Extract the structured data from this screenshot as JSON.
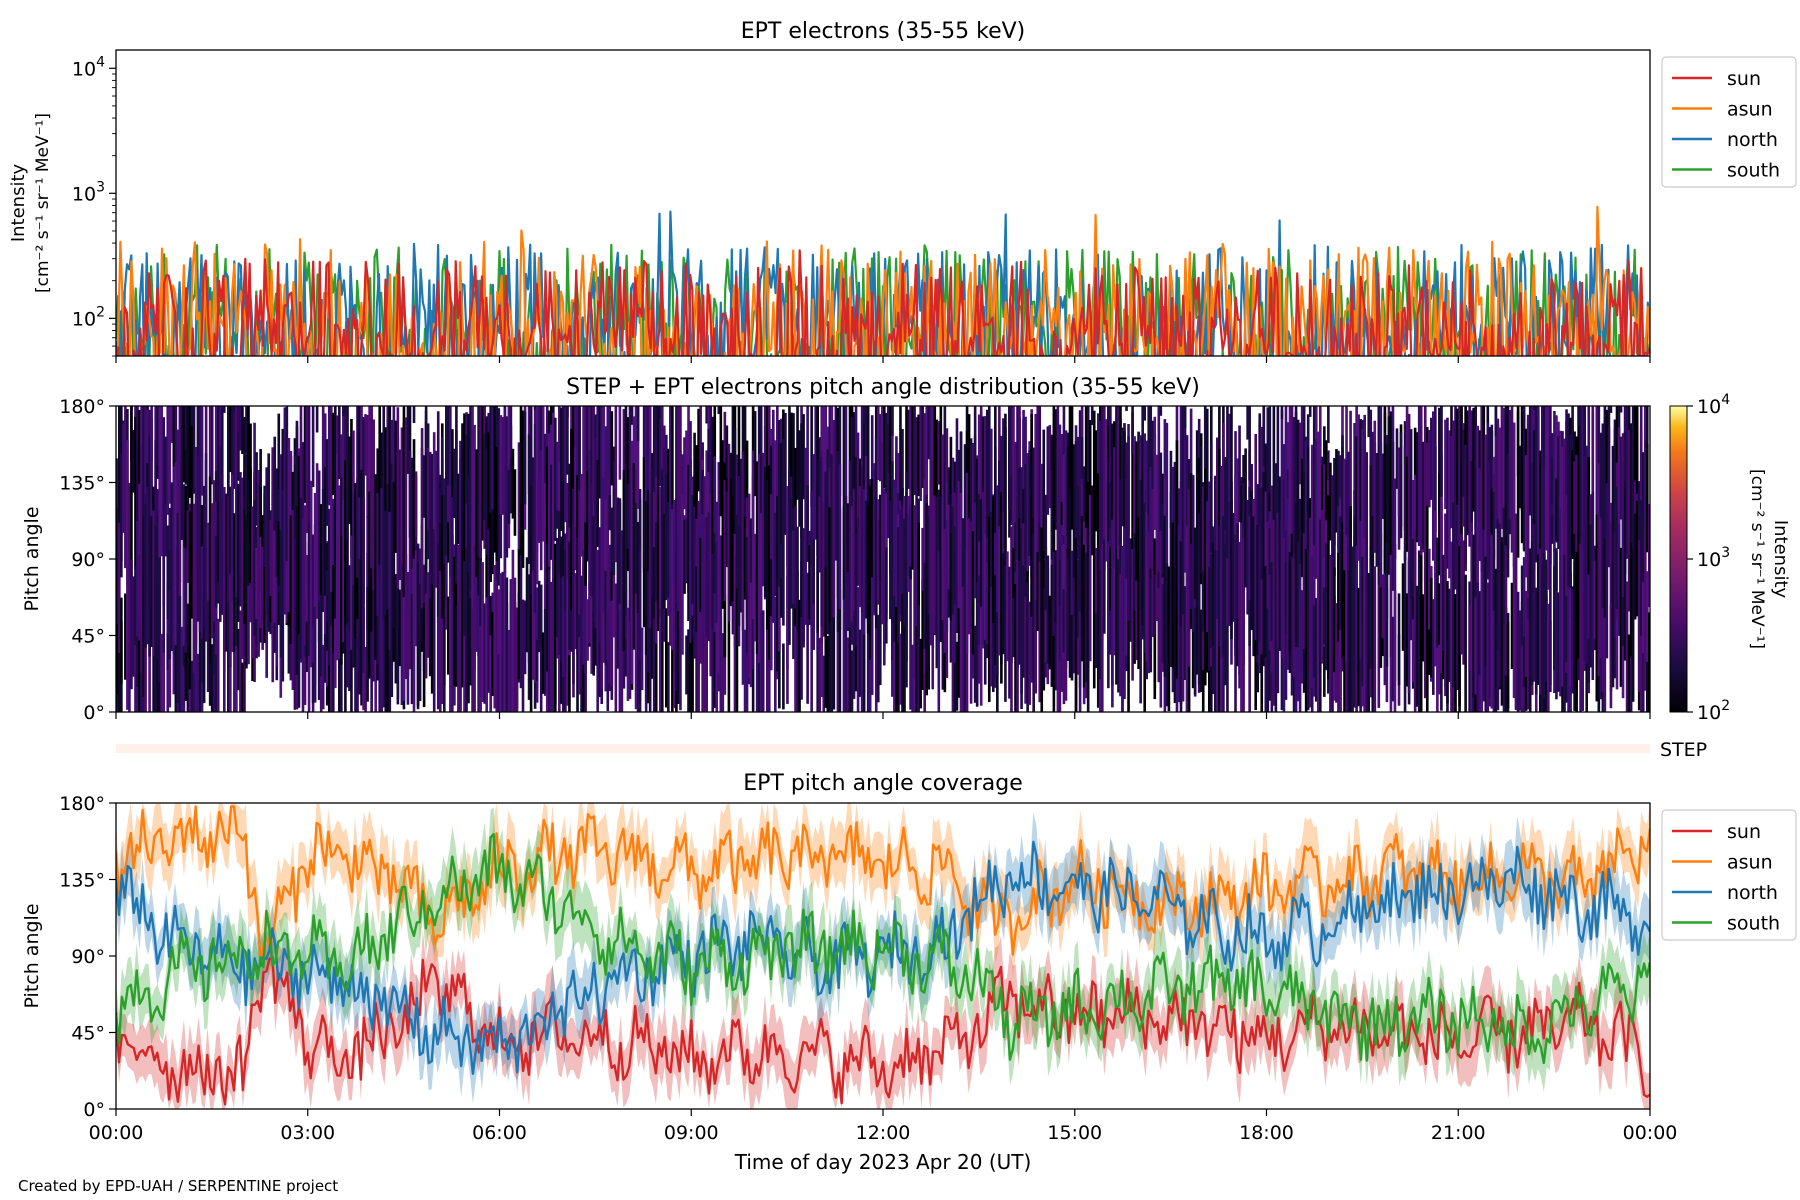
{
  "footer": "Created by EPD-UAH / SERPENTINE project",
  "xaxis_label": "Time of day 2023 Apr 20 (UT)",
  "x_ticks": [
    "00:00",
    "03:00",
    "06:00",
    "09:00",
    "12:00",
    "15:00",
    "18:00",
    "21:00",
    "00:00"
  ],
  "step_label": "STEP",
  "colors": {
    "sun": "#d62728",
    "asun": "#ff7f0e",
    "north": "#1f77b4",
    "south": "#2ca02c"
  },
  "chart_data": [
    {
      "type": "line",
      "title": "EPT electrons (35-55 keV)",
      "ylabel": [
        "Intensity",
        "[cm⁻² s⁻¹ sr⁻¹ MeV⁻¹]"
      ],
      "yscale": "log",
      "ylim": [
        50,
        14000
      ],
      "y_ticks": [
        {
          "v": 100,
          "base": "10",
          "exp": "2"
        },
        {
          "v": 1000,
          "base": "10",
          "exp": "3"
        },
        {
          "v": 10000,
          "base": "10",
          "exp": "4"
        }
      ],
      "xlim": [
        0,
        24
      ],
      "legend": "right",
      "legend_entries": [
        "sun",
        "asun",
        "north",
        "south"
      ],
      "series_summary": [
        {
          "name": "sun",
          "typical_range": [
            50,
            300
          ]
        },
        {
          "name": "asun",
          "typical_range": [
            50,
            700
          ]
        },
        {
          "name": "north",
          "typical_range": [
            50,
            650
          ]
        },
        {
          "name": "south",
          "typical_range": [
            50,
            650
          ]
        }
      ]
    },
    {
      "type": "heatmap",
      "title": "STEP + EPT electrons pitch angle distribution (35-55 keV)",
      "ylabel": "Pitch angle",
      "y_ticks": [
        "0°",
        "45°",
        "90°",
        "135°",
        "180°"
      ],
      "ylim": [
        0,
        180
      ],
      "xlim": [
        0,
        24
      ],
      "colorbar": {
        "label": [
          "Intensity",
          "[cm⁻² s⁻¹ sr⁻¹ MeV⁻¹]"
        ],
        "scale": "log",
        "range": [
          100,
          10000
        ],
        "ticks": [
          {
            "base": "10",
            "exp": "2"
          },
          {
            "base": "10",
            "exp": "3"
          },
          {
            "base": "10",
            "exp": "4"
          }
        ],
        "colormap": "inferno"
      }
    },
    {
      "type": "line",
      "title": "EPT pitch angle coverage",
      "ylabel": "Pitch angle",
      "y_ticks": [
        "0°",
        "45°",
        "90°",
        "135°",
        "180°"
      ],
      "ylim": [
        0,
        180
      ],
      "xlim": [
        0,
        24
      ],
      "legend": "right",
      "legend_entries": [
        "sun",
        "asun",
        "north",
        "south"
      ],
      "series": [
        {
          "name": "sun",
          "x": [
            0,
            1,
            2,
            2.3,
            3,
            3.6,
            4.5,
            5,
            6,
            7,
            8,
            9,
            10,
            11,
            12,
            13,
            13.7,
            14,
            15,
            16,
            17,
            18,
            19,
            20,
            21,
            22,
            23,
            24
          ],
          "values": [
            40,
            25,
            20,
            90,
            40,
            30,
            50,
            75,
            40,
            45,
            40,
            30,
            35,
            30,
            25,
            35,
            55,
            65,
            55,
            55,
            50,
            40,
            50,
            45,
            40,
            45,
            50,
            30
          ]
        },
        {
          "name": "asun",
          "x": [
            0,
            1,
            2,
            2.3,
            3,
            3.6,
            4.5,
            5,
            6,
            7,
            8,
            9,
            10,
            11,
            12,
            13,
            13.7,
            14,
            15,
            16,
            17,
            18,
            19,
            20,
            21,
            22,
            23,
            24
          ],
          "values": [
            145,
            160,
            165,
            90,
            150,
            150,
            130,
            110,
            140,
            150,
            150,
            140,
            145,
            150,
            145,
            140,
            110,
            115,
            135,
            125,
            120,
            130,
            135,
            140,
            135,
            140,
            130,
            160
          ]
        },
        {
          "name": "north",
          "x": [
            0,
            1,
            2,
            2.3,
            3,
            3.6,
            4.5,
            5,
            6,
            7,
            8,
            9,
            10,
            11,
            12,
            13,
            13.7,
            14,
            15,
            16,
            17,
            18,
            19,
            20,
            21,
            22,
            23,
            24
          ],
          "values": [
            130,
            95,
            85,
            85,
            80,
            75,
            55,
            45,
            35,
            60,
            80,
            90,
            100,
            85,
            90,
            100,
            130,
            140,
            130,
            125,
            110,
            100,
            110,
            125,
            130,
            135,
            120,
            110
          ]
        },
        {
          "name": "south",
          "x": [
            0,
            1,
            2,
            2.3,
            3,
            3.6,
            4.5,
            5,
            6,
            7,
            8,
            9,
            10,
            11,
            12,
            13,
            13.7,
            14,
            15,
            16,
            17,
            18,
            19,
            20,
            21,
            22,
            23,
            24
          ],
          "values": [
            60,
            80,
            90,
            95,
            90,
            85,
            110,
            125,
            140,
            120,
            95,
            85,
            90,
            95,
            95,
            85,
            70,
            50,
            60,
            65,
            75,
            70,
            55,
            50,
            55,
            45,
            60,
            75
          ]
        }
      ]
    }
  ]
}
